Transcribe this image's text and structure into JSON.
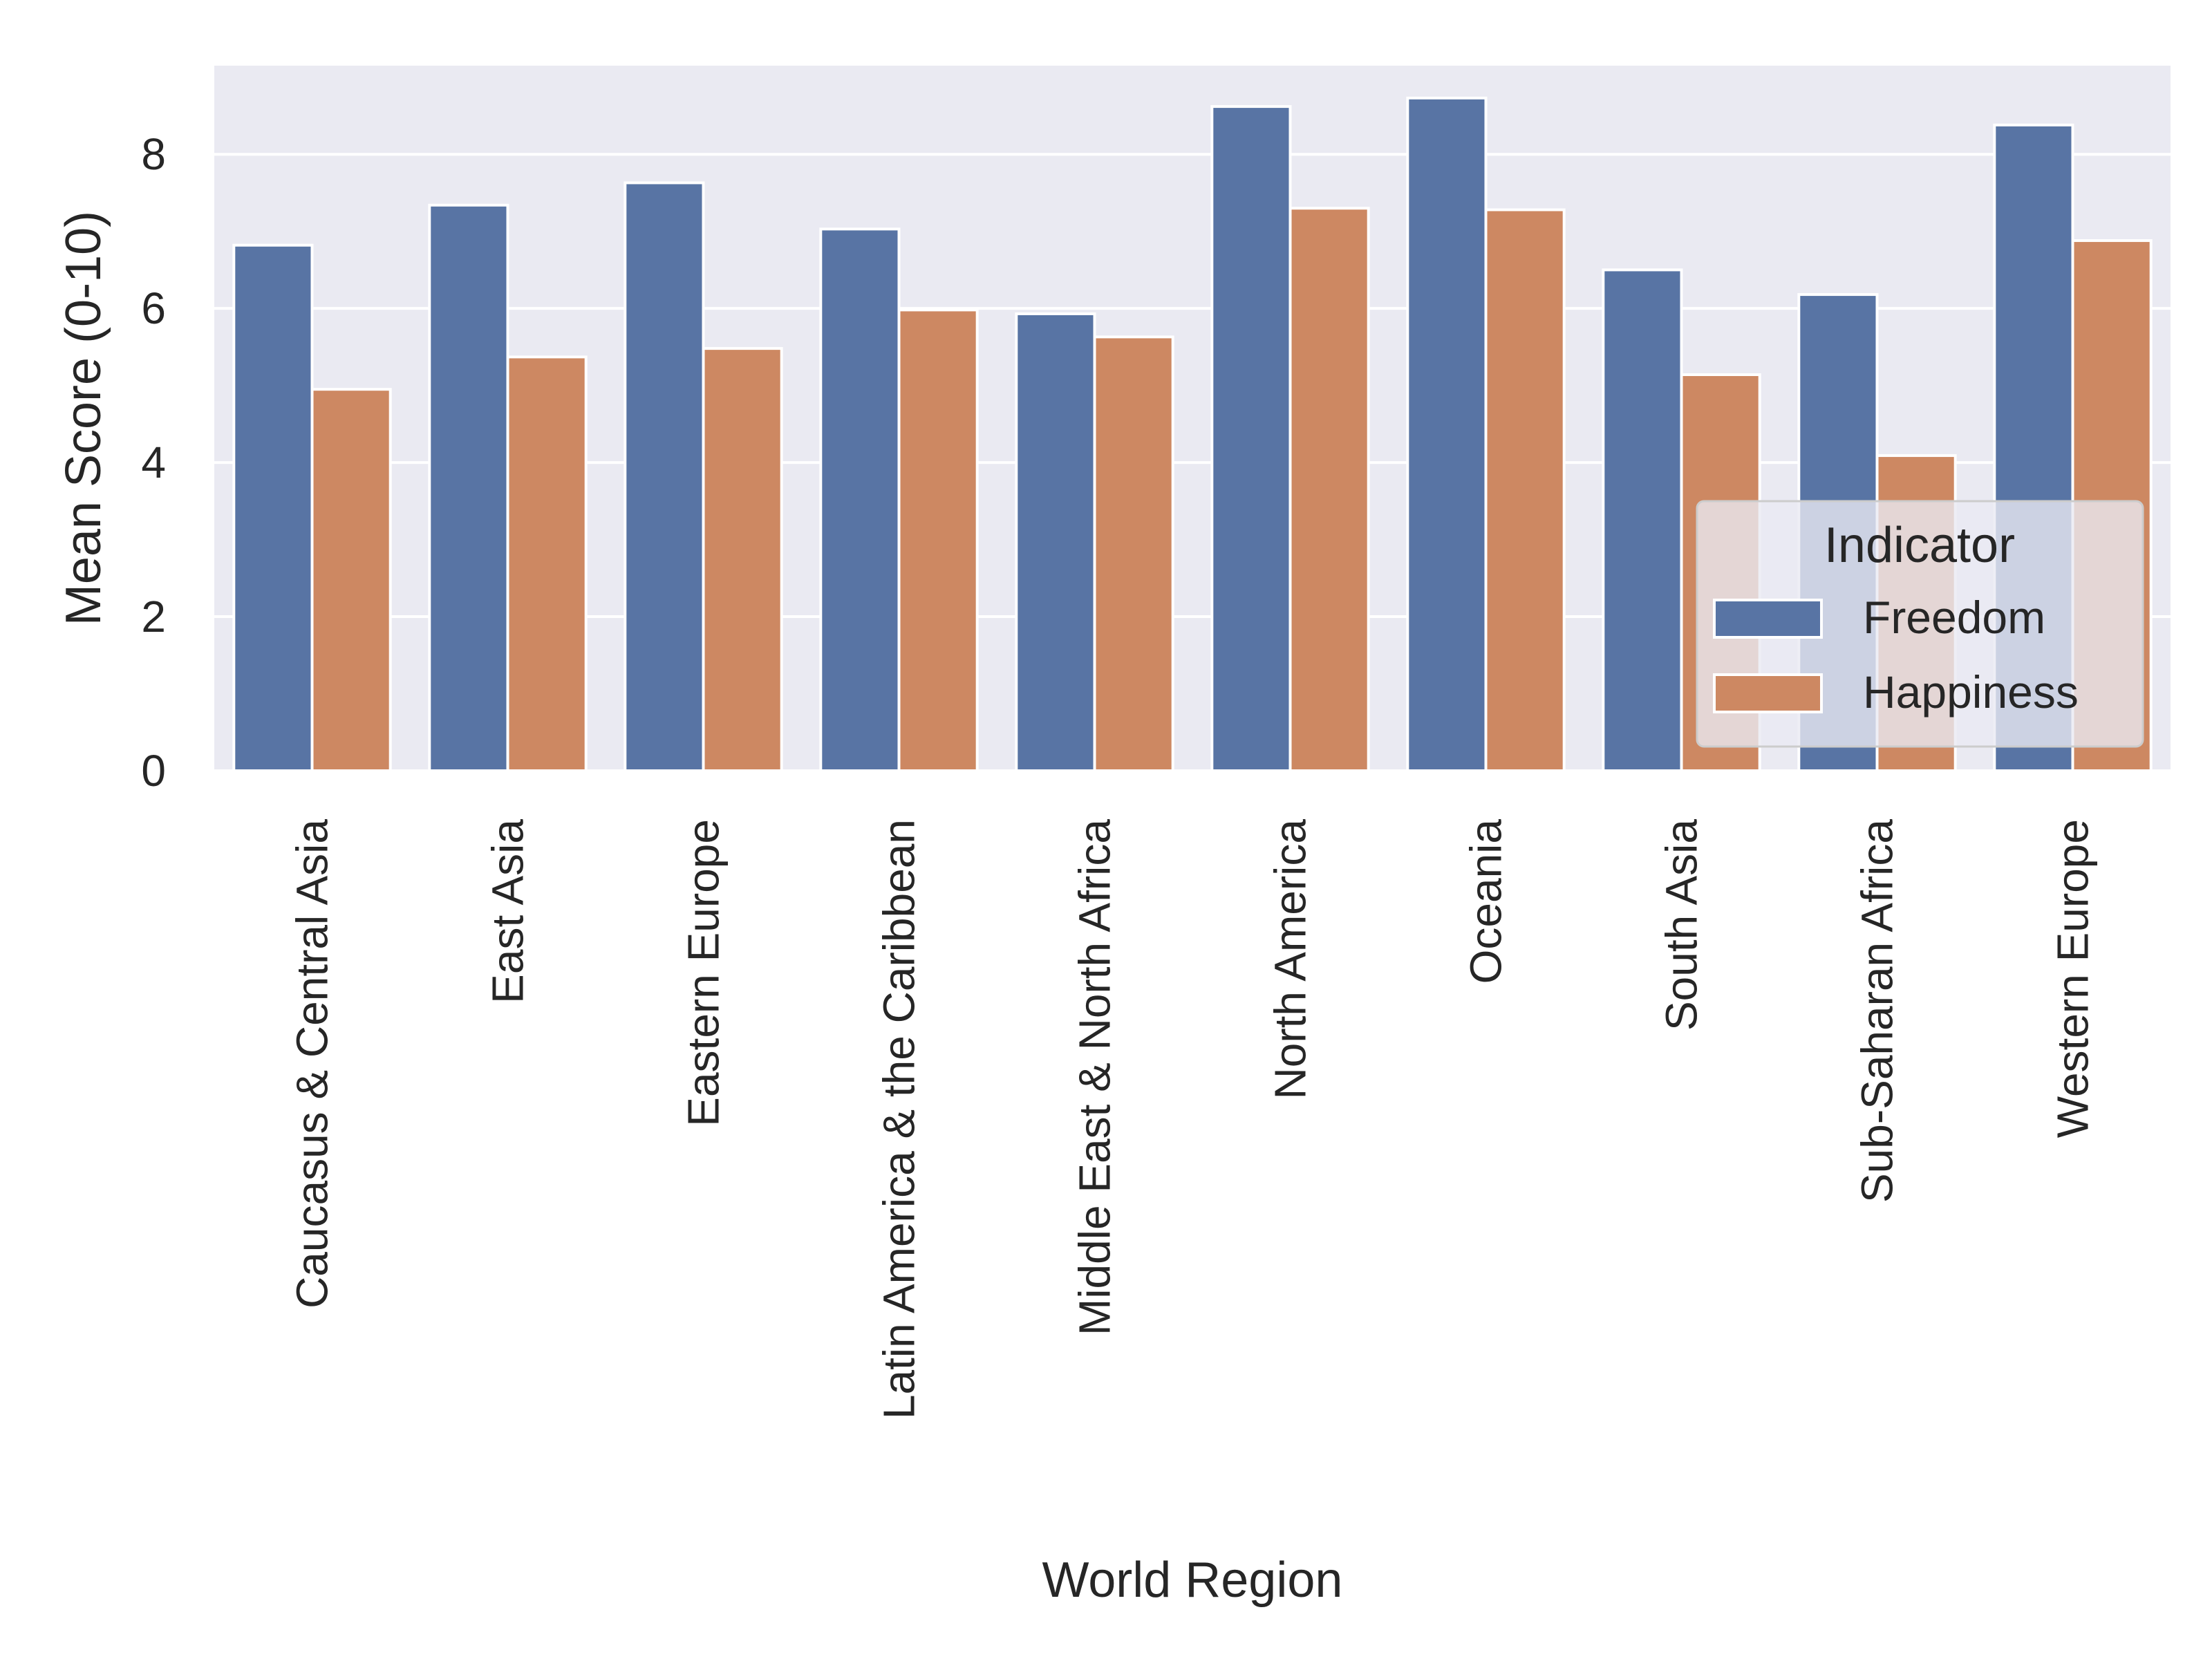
{
  "chart_data": {
    "type": "bar",
    "title": "",
    "xlabel": "World Region",
    "ylabel": "Mean Score (0-10)",
    "ylim": [
      0,
      9.15
    ],
    "yticks": [
      0,
      2,
      4,
      6,
      8
    ],
    "grid": true,
    "legend": {
      "title": "Indicator",
      "position": "lower-right"
    },
    "categories": [
      "Caucasus & Central Asia",
      "East Asia",
      "Eastern Europe",
      "Latin America & the Caribbean",
      "Middle East & North Africa",
      "North America",
      "Oceania",
      "South Asia",
      "Sub-Saharan Africa",
      "Western Europe"
    ],
    "series": [
      {
        "name": "Freedom",
        "color": "#5874a4",
        "values": [
          6.82,
          7.34,
          7.63,
          7.03,
          5.93,
          8.62,
          8.73,
          6.5,
          6.18,
          8.38
        ]
      },
      {
        "name": "Happiness",
        "color": "#cd8862",
        "values": [
          4.95,
          5.37,
          5.48,
          5.98,
          5.63,
          7.3,
          7.28,
          5.14,
          4.09,
          6.88
        ]
      }
    ]
  }
}
